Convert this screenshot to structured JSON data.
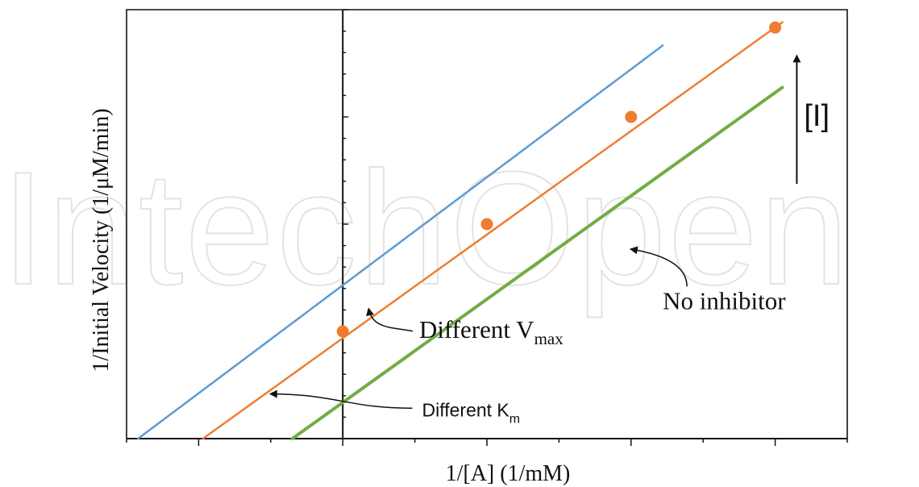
{
  "watermark_text": "IntechOpen",
  "chart_data": {
    "type": "line",
    "title": "",
    "xlabel": "1/[A] (1/mM)",
    "ylabel": "1/Initial Velocity (1/μM/min)",
    "xlim": [
      -1.5,
      3.5
    ],
    "ylim": [
      0,
      4.8
    ],
    "grid": false,
    "legend": "none",
    "series": [
      {
        "color": "#5b9bd5",
        "x": [
          -1.42,
          2.22
        ],
        "y": [
          0.0,
          4.4
        ]
      },
      {
        "color": "#ed7d31",
        "x": [
          -0.97,
          3.05
        ],
        "y": [
          0.0,
          4.66
        ],
        "points_x": [
          0.0,
          1.0,
          2.0,
          3.0
        ],
        "points_y": [
          1.2,
          2.4,
          3.6,
          4.6
        ]
      },
      {
        "color": "#70ad47",
        "x": [
          -0.35,
          3.05
        ],
        "y": [
          0.0,
          3.93
        ]
      }
    ],
    "annotations": [
      {
        "text": "Different V",
        "subscript": "max",
        "x": 0.53,
        "y": 1.13,
        "arrow_to": [
          0.18,
          1.45
        ]
      },
      {
        "text": "Different K",
        "subscript": "m",
        "x": 0.55,
        "y": 0.25,
        "arrow_to": [
          -0.5,
          0.5
        ]
      },
      {
        "text": "No inhibitor",
        "x": 2.22,
        "y": 1.45,
        "arrow_to": [
          2.0,
          2.12
        ]
      },
      {
        "text": "[I]",
        "x": 3.2,
        "y": 3.5,
        "arrow_from": [
          3.15,
          2.85
        ],
        "arrow_to": [
          3.15,
          4.3
        ]
      }
    ]
  }
}
